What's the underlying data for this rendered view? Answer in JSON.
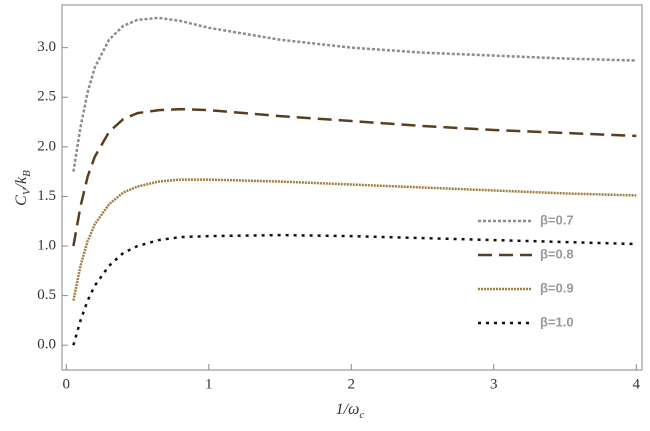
{
  "chart_data": {
    "type": "line",
    "xlabel": [
      "1/ω",
      "c"
    ],
    "ylabel": [
      "C",
      "V",
      "/k",
      "B"
    ],
    "x": [
      0.05,
      0.1,
      0.15,
      0.2,
      0.3,
      0.4,
      0.5,
      0.65,
      0.8,
      1,
      1.5,
      2,
      2.5,
      3,
      3.5,
      4
    ],
    "series": [
      {
        "name": "β=0.7",
        "color": "#8c8c8c",
        "dash": "3,2",
        "values": [
          1.75,
          2.2,
          2.55,
          2.8,
          3.08,
          3.22,
          3.28,
          3.3,
          3.27,
          3.2,
          3.08,
          3.0,
          2.95,
          2.92,
          2.89,
          2.87
        ]
      },
      {
        "name": "β=0.8",
        "color": "#5a3e1e",
        "dash": "14,7",
        "values": [
          1.0,
          1.4,
          1.7,
          1.9,
          2.15,
          2.28,
          2.34,
          2.37,
          2.38,
          2.37,
          2.31,
          2.26,
          2.21,
          2.17,
          2.14,
          2.11
        ]
      },
      {
        "name": "β=0.9",
        "color": "#a27c3c",
        "dash": "2,1",
        "values": [
          0.45,
          0.8,
          1.05,
          1.22,
          1.42,
          1.54,
          1.6,
          1.65,
          1.67,
          1.67,
          1.65,
          1.62,
          1.59,
          1.56,
          1.53,
          1.51
        ]
      },
      {
        "name": "β=1.0",
        "color": "#111111",
        "dash": "3,5",
        "values": [
          0.0,
          0.25,
          0.45,
          0.6,
          0.8,
          0.93,
          1.0,
          1.06,
          1.09,
          1.1,
          1.11,
          1.1,
          1.08,
          1.06,
          1.04,
          1.02
        ]
      }
    ],
    "xlim": [
      -0.03,
      4.04
    ],
    "ylim": [
      -0.25,
      3.43
    ],
    "xticks": [
      0,
      1,
      2,
      3,
      4
    ],
    "yticks": [
      {
        "value": 0,
        "label": "0.0"
      },
      {
        "value": 0.5,
        "label": "0.5"
      },
      {
        "value": 1,
        "label": "1.0"
      },
      {
        "value": 1.5,
        "label": "1.5"
      },
      {
        "value": 2,
        "label": "2.0"
      },
      {
        "value": 2.5,
        "label": "2.5"
      },
      {
        "value": 3,
        "label": "3.0"
      }
    ],
    "legend": "right",
    "grid": false
  }
}
